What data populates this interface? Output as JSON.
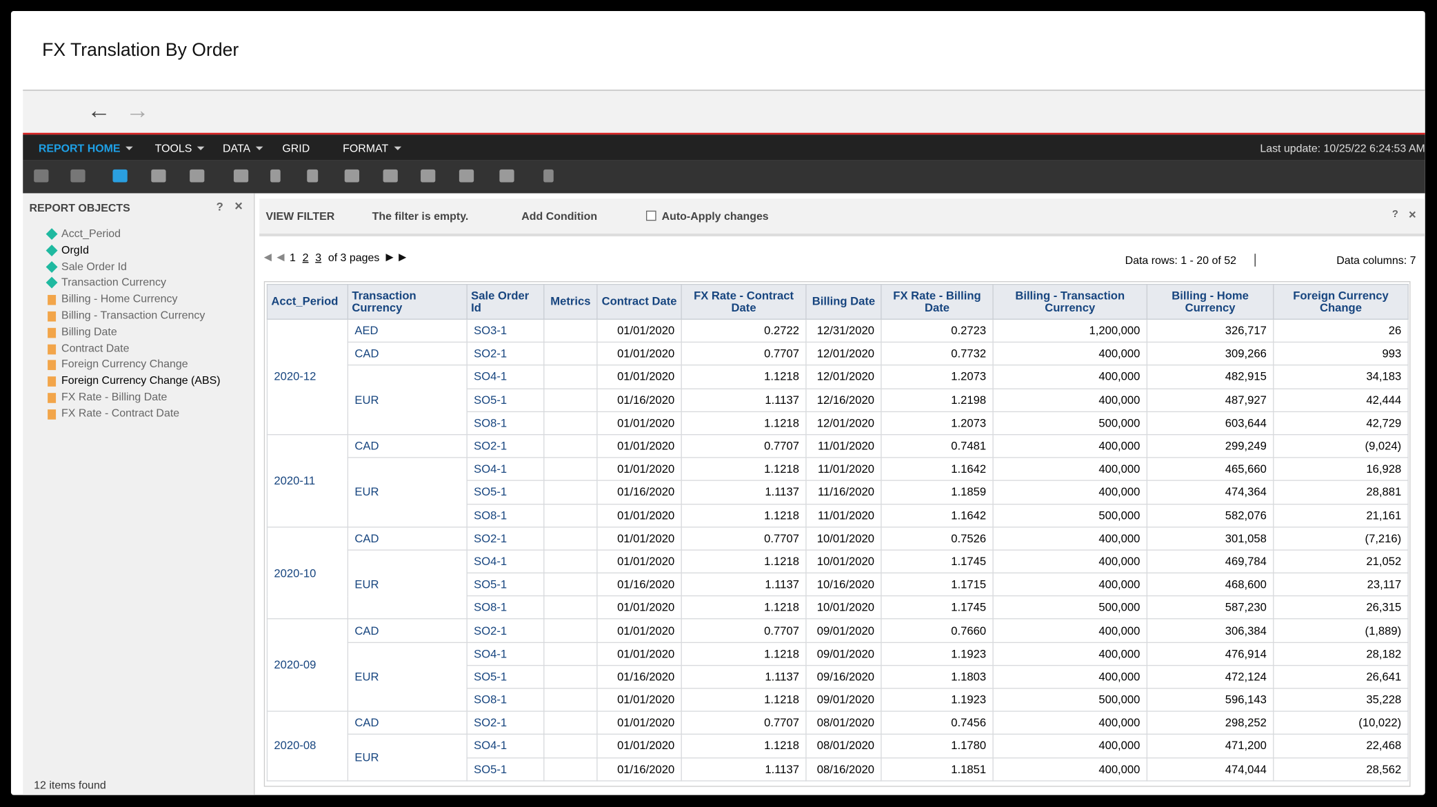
{
  "window": {
    "title": "FX Translation By Order"
  },
  "menu": {
    "items": [
      "REPORT HOME",
      "TOOLS",
      "DATA",
      "GRID",
      "FORMAT"
    ],
    "last_update": "Last update: 10/25/22 6:24:53 AM"
  },
  "report_objects": {
    "title": "REPORT OBJECTS",
    "items": [
      {
        "label": "Acct_Period",
        "kind": "attribute",
        "active": false
      },
      {
        "label": "OrgId",
        "kind": "attribute",
        "active": true
      },
      {
        "label": "Sale Order Id",
        "kind": "attribute",
        "active": false
      },
      {
        "label": "Transaction Currency",
        "kind": "attribute",
        "active": false
      },
      {
        "label": "Billing - Home Currency",
        "kind": "metric",
        "active": false
      },
      {
        "label": "Billing - Transaction Currency",
        "kind": "metric",
        "active": false
      },
      {
        "label": "Billing Date",
        "kind": "metric",
        "active": false
      },
      {
        "label": "Contract Date",
        "kind": "metric",
        "active": false
      },
      {
        "label": "Foreign Currency Change",
        "kind": "metric",
        "active": false
      },
      {
        "label": "Foreign Currency Change (ABS)",
        "kind": "metric",
        "active": true
      },
      {
        "label": "FX Rate - Billing Date",
        "kind": "metric",
        "active": false
      },
      {
        "label": "FX Rate - Contract Date",
        "kind": "metric",
        "active": false
      }
    ],
    "footer": "12 items found"
  },
  "view_filter": {
    "title": "VIEW FILTER",
    "status": "The filter is empty.",
    "add": "Add Condition",
    "auto_apply": "Auto-Apply changes"
  },
  "pagination": {
    "pages": [
      "1",
      "2",
      "3"
    ],
    "of": "of 3 pages",
    "rows_info": "Data rows: 1 - 20 of 52",
    "cols_info": "Data columns: 7"
  },
  "table": {
    "columns": [
      "Acct_Period",
      "Transaction Currency",
      "Sale Order Id",
      "Metrics",
      "Contract Date",
      "FX Rate - Contract Date",
      "Billing Date",
      "FX Rate - Billing Date",
      "Billing - Transaction Currency",
      "Billing - Home Currency",
      "Foreign Currency Change"
    ],
    "groups": [
      {
        "period": "2020-12",
        "currencies": [
          {
            "name": "AED",
            "rows": [
              [
                "SO3-1",
                "01/01/2020",
                "0.2722",
                "12/31/2020",
                "0.2723",
                "1,200,000",
                "326,717",
                "26"
              ]
            ]
          },
          {
            "name": "CAD",
            "rows": [
              [
                "SO2-1",
                "01/01/2020",
                "0.7707",
                "12/01/2020",
                "0.7732",
                "400,000",
                "309,266",
                "993"
              ]
            ]
          },
          {
            "name": "EUR",
            "rows": [
              [
                "SO4-1",
                "01/01/2020",
                "1.1218",
                "12/01/2020",
                "1.2073",
                "400,000",
                "482,915",
                "34,183"
              ],
              [
                "SO5-1",
                "01/16/2020",
                "1.1137",
                "12/16/2020",
                "1.2198",
                "400,000",
                "487,927",
                "42,444"
              ],
              [
                "SO8-1",
                "01/01/2020",
                "1.1218",
                "12/01/2020",
                "1.2073",
                "500,000",
                "603,644",
                "42,729"
              ]
            ]
          }
        ]
      },
      {
        "period": "2020-11",
        "currencies": [
          {
            "name": "CAD",
            "rows": [
              [
                "SO2-1",
                "01/01/2020",
                "0.7707",
                "11/01/2020",
                "0.7481",
                "400,000",
                "299,249",
                "(9,024)"
              ]
            ]
          },
          {
            "name": "EUR",
            "rows": [
              [
                "SO4-1",
                "01/01/2020",
                "1.1218",
                "11/01/2020",
                "1.1642",
                "400,000",
                "465,660",
                "16,928"
              ],
              [
                "SO5-1",
                "01/16/2020",
                "1.1137",
                "11/16/2020",
                "1.1859",
                "400,000",
                "474,364",
                "28,881"
              ],
              [
                "SO8-1",
                "01/01/2020",
                "1.1218",
                "11/01/2020",
                "1.1642",
                "500,000",
                "582,076",
                "21,161"
              ]
            ]
          }
        ]
      },
      {
        "period": "2020-10",
        "currencies": [
          {
            "name": "CAD",
            "rows": [
              [
                "SO2-1",
                "01/01/2020",
                "0.7707",
                "10/01/2020",
                "0.7526",
                "400,000",
                "301,058",
                "(7,216)"
              ]
            ]
          },
          {
            "name": "EUR",
            "rows": [
              [
                "SO4-1",
                "01/01/2020",
                "1.1218",
                "10/01/2020",
                "1.1745",
                "400,000",
                "469,784",
                "21,052"
              ],
              [
                "SO5-1",
                "01/16/2020",
                "1.1137",
                "10/16/2020",
                "1.1715",
                "400,000",
                "468,600",
                "23,117"
              ],
              [
                "SO8-1",
                "01/01/2020",
                "1.1218",
                "10/01/2020",
                "1.1745",
                "500,000",
                "587,230",
                "26,315"
              ]
            ]
          }
        ]
      },
      {
        "period": "2020-09",
        "currencies": [
          {
            "name": "CAD",
            "rows": [
              [
                "SO2-1",
                "01/01/2020",
                "0.7707",
                "09/01/2020",
                "0.7660",
                "400,000",
                "306,384",
                "(1,889)"
              ]
            ]
          },
          {
            "name": "EUR",
            "rows": [
              [
                "SO4-1",
                "01/01/2020",
                "1.1218",
                "09/01/2020",
                "1.1923",
                "400,000",
                "476,914",
                "28,182"
              ],
              [
                "SO5-1",
                "01/16/2020",
                "1.1137",
                "09/16/2020",
                "1.1803",
                "400,000",
                "472,124",
                "26,641"
              ],
              [
                "SO8-1",
                "01/01/2020",
                "1.1218",
                "09/01/2020",
                "1.1923",
                "500,000",
                "596,143",
                "35,228"
              ]
            ]
          }
        ]
      },
      {
        "period": "2020-08",
        "currencies": [
          {
            "name": "CAD",
            "rows": [
              [
                "SO2-1",
                "01/01/2020",
                "0.7707",
                "08/01/2020",
                "0.7456",
                "400,000",
                "298,252",
                "(10,022)"
              ]
            ]
          },
          {
            "name": "EUR",
            "rows": [
              [
                "SO4-1",
                "01/01/2020",
                "1.1218",
                "08/01/2020",
                "1.1780",
                "400,000",
                "471,200",
                "22,468"
              ],
              [
                "SO5-1",
                "01/16/2020",
                "1.1137",
                "08/16/2020",
                "1.1851",
                "400,000",
                "474,044",
                "28,562"
              ]
            ]
          }
        ]
      }
    ]
  }
}
